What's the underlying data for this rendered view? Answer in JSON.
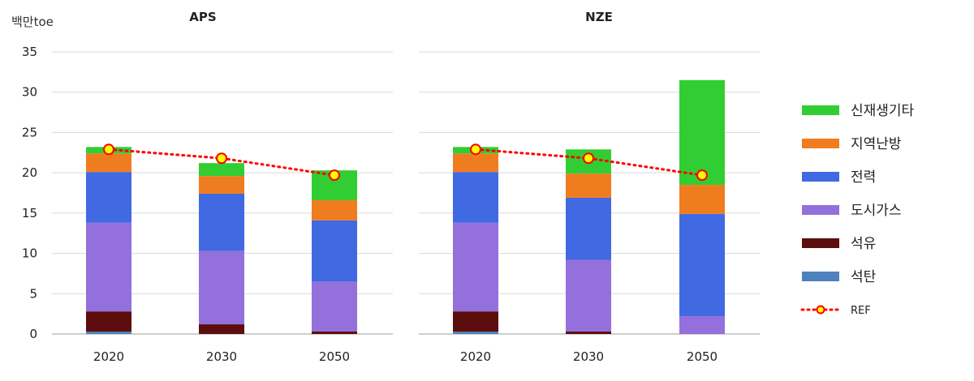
{
  "unit_label": "백만toe",
  "chart_data": {
    "type": "bar",
    "stacked": true,
    "ylim": [
      0,
      35
    ],
    "yticks": [
      0,
      5,
      10,
      15,
      20,
      25,
      30,
      35
    ],
    "grid": true,
    "legend_position": "right",
    "series_meta": [
      {
        "name": "석탄",
        "color": "#4f81bd"
      },
      {
        "name": "석유",
        "color": "#5c0d0d"
      },
      {
        "name": "도시가스",
        "color": "#9370db"
      },
      {
        "name": "전력",
        "color": "#4169e1"
      },
      {
        "name": "지역난방",
        "color": "#f07c20"
      },
      {
        "name": "신재생기타",
        "color": "#32cd32"
      }
    ],
    "ref": {
      "name": "REF",
      "line_color": "#ff0000",
      "marker_fill": "#ffff00",
      "marker_edge": "#ff0000"
    },
    "panels": [
      {
        "title": "APS",
        "categories": [
          "2020",
          "2030",
          "2050"
        ],
        "stacks": [
          [
            0.3,
            2.5,
            11.0,
            6.3,
            2.3,
            0.8
          ],
          [
            0.0,
            1.2,
            9.1,
            7.1,
            2.2,
            1.6
          ],
          [
            0.0,
            0.3,
            6.2,
            7.6,
            2.5,
            3.7
          ]
        ],
        "ref": [
          22.9,
          21.8,
          19.7
        ]
      },
      {
        "title": "NZE",
        "categories": [
          "2020",
          "2030",
          "2050"
        ],
        "stacks": [
          [
            0.3,
            2.5,
            11.0,
            6.3,
            2.3,
            0.8
          ],
          [
            0.0,
            0.3,
            8.9,
            7.7,
            3.0,
            3.0
          ],
          [
            0.0,
            0.0,
            2.2,
            12.7,
            3.6,
            13.0
          ]
        ],
        "ref": [
          22.9,
          21.8,
          19.7
        ]
      }
    ]
  }
}
